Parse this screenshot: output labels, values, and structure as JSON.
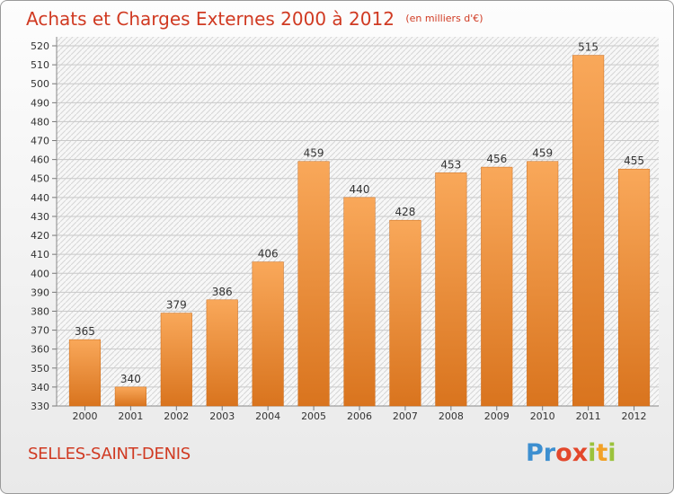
{
  "header": {
    "title": "Achats et Charges Externes 2000 à 2012",
    "unit": "(en milliers d'€)"
  },
  "footer": {
    "place": "SELLES-SAINT-DENIS",
    "logo_letters": [
      "P",
      "r",
      "o",
      "x",
      "i",
      "t",
      "i"
    ],
    "logo_colors": [
      "#3d8fd0",
      "#3d8fd0",
      "#e3472b",
      "#e3472b",
      "#9bc23c",
      "#f2a127",
      "#9bc23c"
    ]
  },
  "colors": {
    "bar_light": "#f9a85a",
    "bar_dark": "#d9741e",
    "title": "#d03a22"
  },
  "chart_data": {
    "type": "bar",
    "categories": [
      "2000",
      "2001",
      "2002",
      "2003",
      "2004",
      "2005",
      "2006",
      "2007",
      "2008",
      "2009",
      "2010",
      "2011",
      "2012"
    ],
    "values": [
      365,
      340,
      379,
      386,
      406,
      459,
      440,
      428,
      453,
      456,
      459,
      515,
      455
    ],
    "title": "Achats et Charges Externes 2000 à 2012",
    "xlabel": "",
    "ylabel": "",
    "ylim": [
      330,
      520
    ],
    "ytick_step": 10,
    "grid": true,
    "data_labels": true
  }
}
